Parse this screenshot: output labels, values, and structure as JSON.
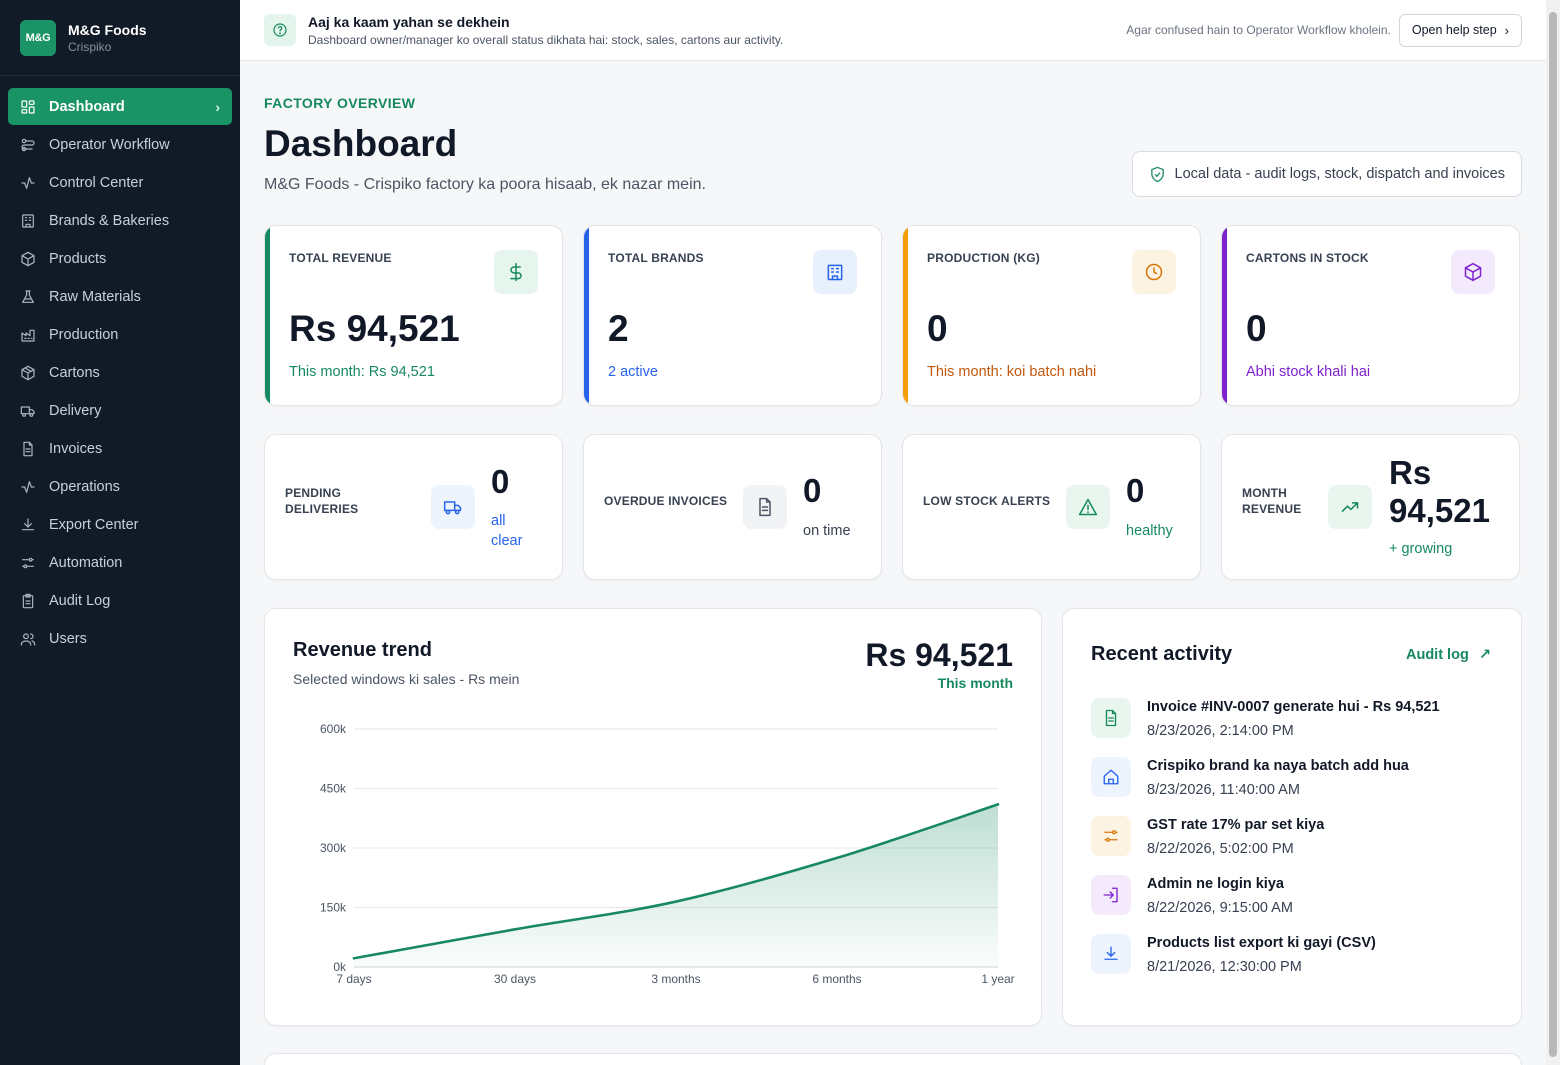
{
  "brand": {
    "logo": "M&G",
    "name": "M&G Foods",
    "sub": "Crispiko"
  },
  "nav": [
    {
      "label": "Dashboard",
      "icon": "grid-icon",
      "active": true
    },
    {
      "label": "Operator Workflow",
      "icon": "workflow-icon"
    },
    {
      "label": "Control Center",
      "icon": "activity-icon"
    },
    {
      "label": "Brands & Bakeries",
      "icon": "building-icon"
    },
    {
      "label": "Products",
      "icon": "box-icon"
    },
    {
      "label": "Raw Materials",
      "icon": "flask-icon"
    },
    {
      "label": "Production",
      "icon": "factory-icon"
    },
    {
      "label": "Cartons",
      "icon": "package-icon"
    },
    {
      "label": "Delivery",
      "icon": "truck-icon"
    },
    {
      "label": "Invoices",
      "icon": "file-icon"
    },
    {
      "label": "Operations",
      "icon": "pulse-icon"
    },
    {
      "label": "Export Center",
      "icon": "download-icon"
    },
    {
      "label": "Automation",
      "icon": "sliders-icon"
    },
    {
      "label": "Audit Log",
      "icon": "clipboard-icon"
    },
    {
      "label": "Users",
      "icon": "users-icon"
    }
  ],
  "help": {
    "title": "Aaj ka kaam yahan se dekhein",
    "subtitle": "Dashboard owner/manager ko overall status dikhata hai: stock, sales, cartons aur activity.",
    "note": "Agar confused hain to Operator Workflow kholein.",
    "button": "Open help step"
  },
  "header": {
    "eyebrow": "FACTORY OVERVIEW",
    "title": "Dashboard",
    "subtitle": "M&G Foods - Crispiko factory ka poora hisaab, ek nazar mein.",
    "pill": "Local data - audit logs, stock, dispatch and invoices"
  },
  "stats": [
    {
      "label": "TOTAL REVENUE",
      "value": "Rs 94,521",
      "note": "This month: Rs 94,521",
      "icon": "dollar-icon",
      "color": "#17895f",
      "bg": "#e6f6ef"
    },
    {
      "label": "TOTAL BRANDS",
      "value": "2",
      "note": "2 active",
      "icon": "building-icon",
      "color": "#2563eb",
      "bg": "#e8f0fd"
    },
    {
      "label": "PRODUCTION (KG)",
      "value": "0",
      "note": "This month: koi batch nahi",
      "icon": "clock-icon",
      "color": "#d97706",
      "bg": "#fdf3e3"
    },
    {
      "label": "CARTONS IN STOCK",
      "value": "0",
      "note": "Abhi stock khali hai",
      "icon": "cube-icon",
      "color": "#7e22ce",
      "bg": "#f3ebfc"
    }
  ],
  "minis": [
    {
      "label1": "PENDING",
      "label2": "DELIVERIES",
      "value": "0",
      "note1": "all",
      "note2": "clear",
      "icon": "truck-icon",
      "color": "#2563eb",
      "bg": "#eef4fd"
    },
    {
      "label1": "OVERDUE INVOICES",
      "value": "0",
      "note1": "on time",
      "icon": "file-icon",
      "color": "#4b5563",
      "bg": "#f1f3f5"
    },
    {
      "label1": "LOW STOCK ALERTS",
      "value": "0",
      "note1": "healthy",
      "icon": "alert-icon",
      "color": "#17895f",
      "bg": "#e8f6ef"
    },
    {
      "label1": "MONTH",
      "label2": "REVENUE",
      "value1": "Rs",
      "value2": "94,521",
      "note1": "+ growing",
      "icon": "trend-up-icon",
      "color": "#17895f",
      "bg": "#e8f6ef"
    }
  ],
  "chart_card": {
    "title": "Revenue trend",
    "subtitle": "Selected windows ki sales - Rs mein",
    "value": "Rs 94,521",
    "value_sub": "This month"
  },
  "chart_data": {
    "type": "area",
    "categories": [
      "7 days",
      "30 days",
      "3 months",
      "6 months",
      "1 year"
    ],
    "y_ticks": [
      "0k",
      "150k",
      "300k",
      "450k",
      "600k"
    ],
    "ylim": [
      0,
      600000
    ],
    "series": [
      {
        "values": [
          22000,
          95000,
          165000,
          275000,
          410000
        ]
      }
    ],
    "color": "#17895f",
    "grid": true
  },
  "activity": {
    "title": "Recent activity",
    "link": "Audit log",
    "items": [
      {
        "text": "Invoice #INV-0007 generate hui - Rs 94,521",
        "date": "8/23/2026, 2:14:00 PM",
        "icon": "file-icon",
        "color": "#17895f",
        "bg": "#e8f6ef"
      },
      {
        "text": "Crispiko brand ka naya batch add hua",
        "date": "8/23/2026, 11:40:00 AM",
        "icon": "home-icon",
        "color": "#2563eb",
        "bg": "#eef4fd"
      },
      {
        "text": "GST rate 17% par set kiya",
        "date": "8/22/2026, 5:02:00 PM",
        "icon": "sliders-icon",
        "color": "#d97706",
        "bg": "#fdf3e3"
      },
      {
        "text": "Admin ne login kiya",
        "date": "8/22/2026, 9:15:00 AM",
        "icon": "login-icon",
        "color": "#7e22ce",
        "bg": "#f3ebfc"
      },
      {
        "text": "Products list export ki gayi (CSV)",
        "date": "8/21/2026, 12:30:00 PM",
        "icon": "download-icon",
        "color": "#2563eb",
        "bg": "#eef4fd"
      }
    ]
  }
}
